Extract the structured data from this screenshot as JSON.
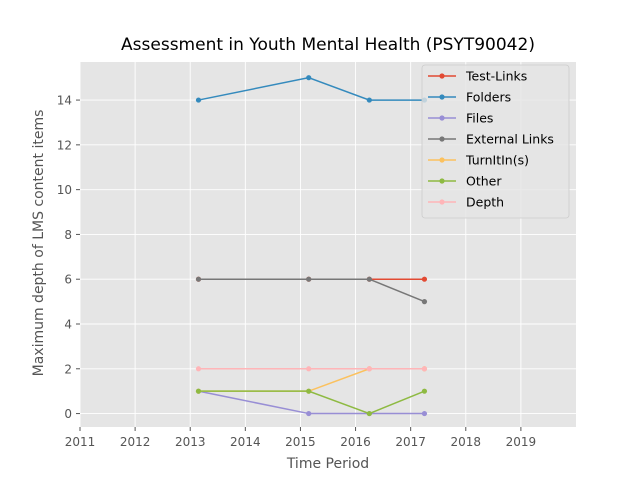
{
  "chart_data": {
    "type": "line",
    "title": "Assessment in Youth Mental Health (PSYT90042)",
    "xlabel": "Time Period",
    "ylabel": "Maximum depth of LMS content items",
    "xlim": [
      2011,
      2020
    ],
    "ylim": [
      -0.6,
      15.7
    ],
    "xticks": [
      2011,
      2012,
      2013,
      2014,
      2015,
      2016,
      2017,
      2018,
      2019
    ],
    "yticks": [
      0,
      2,
      4,
      6,
      8,
      10,
      12,
      14
    ],
    "grid": true,
    "legend_position": "top-right",
    "x": [
      2013.15,
      2015.15,
      2016.25,
      2017.25
    ],
    "series": [
      {
        "name": "Test-Links",
        "color": "#E24A33",
        "values": [
          6,
          6,
          6,
          6
        ]
      },
      {
        "name": "Folders",
        "color": "#348ABD",
        "values": [
          14,
          15,
          14,
          14
        ]
      },
      {
        "name": "Files",
        "color": "#988ED5",
        "values": [
          1,
          0,
          0,
          0
        ]
      },
      {
        "name": "External Links",
        "color": "#777777",
        "values": [
          6,
          6,
          6,
          5
        ]
      },
      {
        "name": "TurnItIn(s)",
        "color": "#FBC15E",
        "values": [
          1,
          1,
          2,
          2
        ]
      },
      {
        "name": "Other",
        "color": "#8EBA42",
        "values": [
          1,
          1,
          0,
          1
        ]
      },
      {
        "name": "Depth",
        "color": "#FFB5B8",
        "values": [
          2,
          2,
          2,
          2
        ]
      }
    ]
  }
}
